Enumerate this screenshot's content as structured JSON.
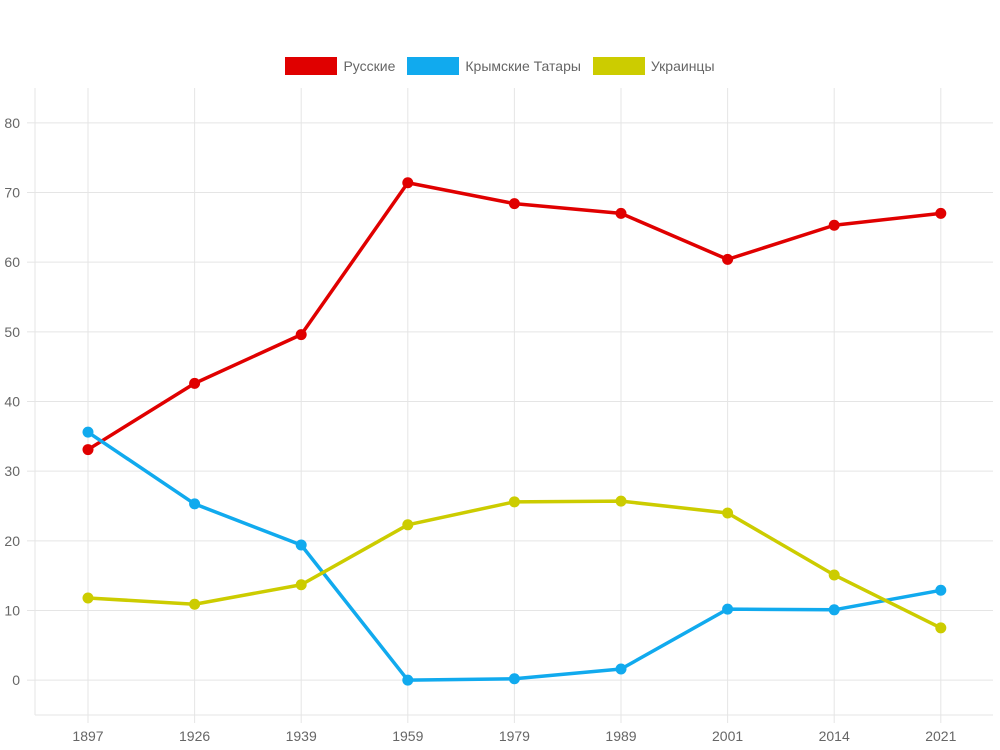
{
  "chart_data": {
    "type": "line",
    "title": "",
    "xlabel": "",
    "ylabel": "",
    "categories": [
      "1897",
      "1926",
      "1939",
      "1959",
      "1979",
      "1989",
      "2001",
      "2014",
      "2021"
    ],
    "ylim": [
      -5,
      85
    ],
    "yticks": [
      0,
      10,
      20,
      30,
      40,
      50,
      60,
      70,
      80
    ],
    "grid": true,
    "legend_position": "top-center",
    "series": [
      {
        "name": "Русские",
        "color": "#e00000",
        "values": [
          33.1,
          42.6,
          49.6,
          71.4,
          68.4,
          67.0,
          60.4,
          65.3,
          67.0
        ]
      },
      {
        "name": "Крымские Татары",
        "color": "#11aaee",
        "values": [
          35.6,
          25.3,
          19.4,
          0.0,
          0.2,
          1.6,
          10.2,
          10.1,
          12.9
        ]
      },
      {
        "name": "Украинцы",
        "color": "#cccc00",
        "values": [
          11.8,
          10.9,
          13.7,
          22.3,
          25.6,
          25.7,
          24.0,
          15.1,
          7.5
        ]
      }
    ]
  }
}
